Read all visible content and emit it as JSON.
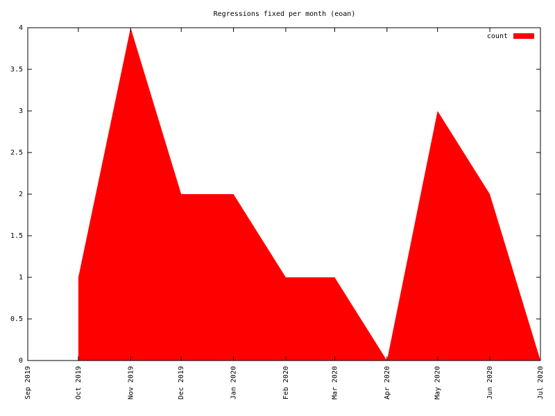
{
  "chart_data": {
    "type": "area",
    "title": "Regressions fixed per month (eoan)",
    "x": [
      "2019-10",
      "2019-11",
      "2019-12",
      "2020-01",
      "2020-02",
      "2020-03",
      "2020-04",
      "2020-05",
      "2020-06",
      "2020-07"
    ],
    "series": [
      {
        "name": "count",
        "color": "#ff0000",
        "values": [
          1,
          4,
          2,
          2,
          1,
          1,
          0,
          3,
          2,
          0
        ]
      }
    ],
    "xlim": [
      "2019-09",
      "2020-07"
    ],
    "xticks": [
      {
        "value": "2019-09",
        "label": "Sep 2019"
      },
      {
        "value": "2019-10",
        "label": "Oct 2019"
      },
      {
        "value": "2019-11",
        "label": "Nov 2019"
      },
      {
        "value": "2019-12",
        "label": "Dec 2019"
      },
      {
        "value": "2020-01",
        "label": "Jan 2020"
      },
      {
        "value": "2020-02",
        "label": "Feb 2020"
      },
      {
        "value": "2020-03",
        "label": "Mar 2020"
      },
      {
        "value": "2020-04",
        "label": "Apr 2020"
      },
      {
        "value": "2020-05",
        "label": "May 2020"
      },
      {
        "value": "2020-06",
        "label": "Jun 2020"
      },
      {
        "value": "2020-07",
        "label": "Jul 2020"
      }
    ],
    "ylim": [
      0,
      4
    ],
    "yticks": [
      0,
      0.5,
      1,
      1.5,
      2,
      2.5,
      3,
      3.5,
      4
    ],
    "grid": false,
    "legend": "top-right"
  }
}
